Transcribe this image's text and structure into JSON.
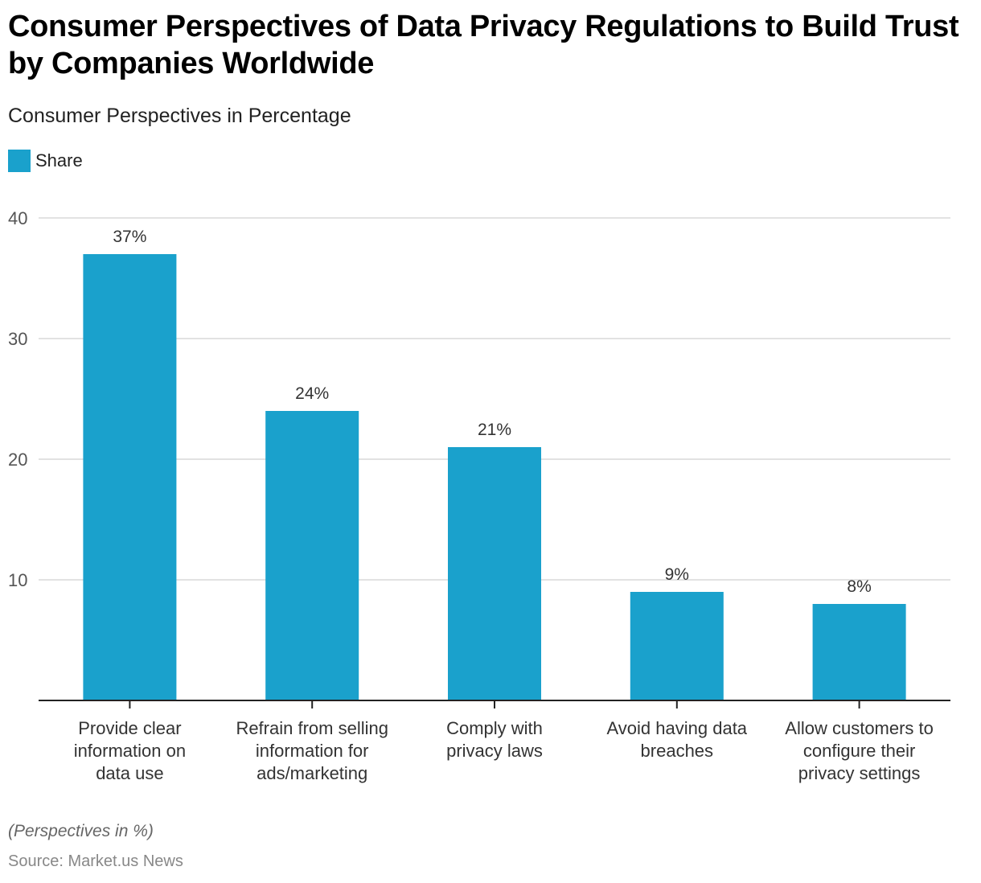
{
  "header": {
    "title": "Consumer Perspectives of Data Privacy Regulations to Build Trust by Companies Worldwide",
    "subtitle": "Consumer Perspectives in Percentage"
  },
  "legend": {
    "items": [
      {
        "label": "Share",
        "color": "#1aa1cc"
      }
    ]
  },
  "footer": {
    "note": "(Perspectives in %)",
    "source": "Source: Market.us News"
  },
  "chart_data": {
    "type": "bar",
    "title": "Consumer Perspectives of Data Privacy Regulations to Build Trust by Companies Worldwide",
    "subtitle": "Consumer Perspectives in Percentage",
    "xlabel": "",
    "ylabel": "",
    "categories": [
      "Provide clear information on data use",
      "Refrain from selling information for ads/marketing",
      "Comply with privacy laws",
      "Avoid having data breaches",
      "Allow customers to configure their privacy settings"
    ],
    "category_lines": [
      [
        "Provide clear",
        "information on",
        "data use"
      ],
      [
        "Refrain from selling",
        "information for",
        "ads/marketing"
      ],
      [
        "Comply with",
        "privacy laws"
      ],
      [
        "Avoid having data",
        "breaches"
      ],
      [
        "Allow customers to",
        "configure their",
        "privacy settings"
      ]
    ],
    "series": [
      {
        "name": "Share",
        "values": [
          37,
          24,
          21,
          9,
          8
        ],
        "color": "#1aa1cc"
      }
    ],
    "data_labels": [
      "37%",
      "24%",
      "21%",
      "9%",
      "8%"
    ],
    "ylim": [
      0,
      40
    ],
    "yticks": [
      10,
      20,
      30,
      40
    ],
    "grid": true,
    "legend_position": "top-left"
  }
}
